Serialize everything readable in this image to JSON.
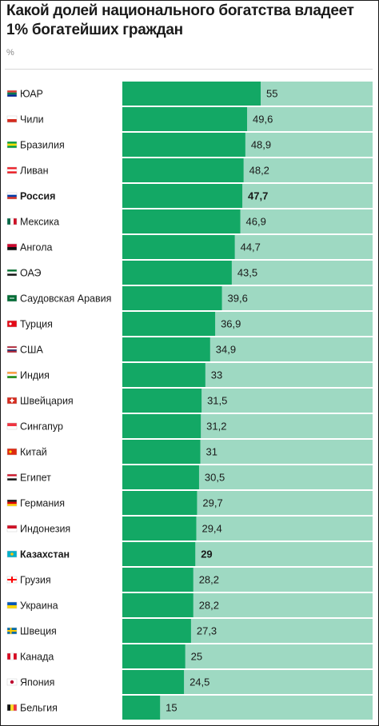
{
  "title": "Какой долей национального богатства владеет 1% богатейших граждан",
  "unit": "%",
  "colors": {
    "bar": "#13a865",
    "track": "#9ed9c2",
    "flag_bg": "#f2f2f2"
  },
  "chart_data": {
    "type": "bar",
    "orientation": "horizontal",
    "xlim": [
      0,
      100
    ],
    "highlighted": [
      "Россия",
      "Казахстан"
    ],
    "categories": [
      "ЮАР",
      "Чили",
      "Бразилия",
      "Ливан",
      "Россия",
      "Мексика",
      "Ангола",
      "ОАЭ",
      "Саудовская Аравия",
      "Турция",
      "США",
      "Индия",
      "Швейцария",
      "Сингапур",
      "Китай",
      "Египет",
      "Германия",
      "Индонезия",
      "Казахстан",
      "Грузия",
      "Украина",
      "Швеция",
      "Канада",
      "Япония",
      "Бельгия"
    ],
    "values": [
      55,
      49.6,
      48.9,
      48.2,
      47.7,
      46.9,
      44.7,
      43.5,
      39.6,
      36.9,
      34.9,
      33,
      31.5,
      31.2,
      31,
      30.5,
      29.7,
      29.4,
      29,
      28.2,
      28.2,
      27.3,
      25,
      24.5,
      15
    ],
    "value_labels": [
      "55",
      "49,6",
      "48,9",
      "48,2",
      "47,7",
      "46,9",
      "44,7",
      "43,5",
      "39,6",
      "36,9",
      "34,9",
      "33",
      "31,5",
      "31,2",
      "31",
      "30,5",
      "29,7",
      "29,4",
      "29",
      "28,2",
      "28,2",
      "27,3",
      "25",
      "24,5",
      "15"
    ],
    "flag_icons": [
      "flag-za-icon",
      "flag-cl-icon",
      "flag-br-icon",
      "flag-lb-icon",
      "flag-ru-icon",
      "flag-mx-icon",
      "flag-ao-icon",
      "flag-ae-icon",
      "flag-sa-icon",
      "flag-tr-icon",
      "flag-us-icon",
      "flag-in-icon",
      "flag-ch-icon",
      "flag-sg-icon",
      "flag-cn-icon",
      "flag-eg-icon",
      "flag-de-icon",
      "flag-id-icon",
      "flag-kz-icon",
      "flag-ge-icon",
      "flag-ua-icon",
      "flag-se-icon",
      "flag-ca-icon",
      "flag-jp-icon",
      "flag-be-icon"
    ]
  }
}
